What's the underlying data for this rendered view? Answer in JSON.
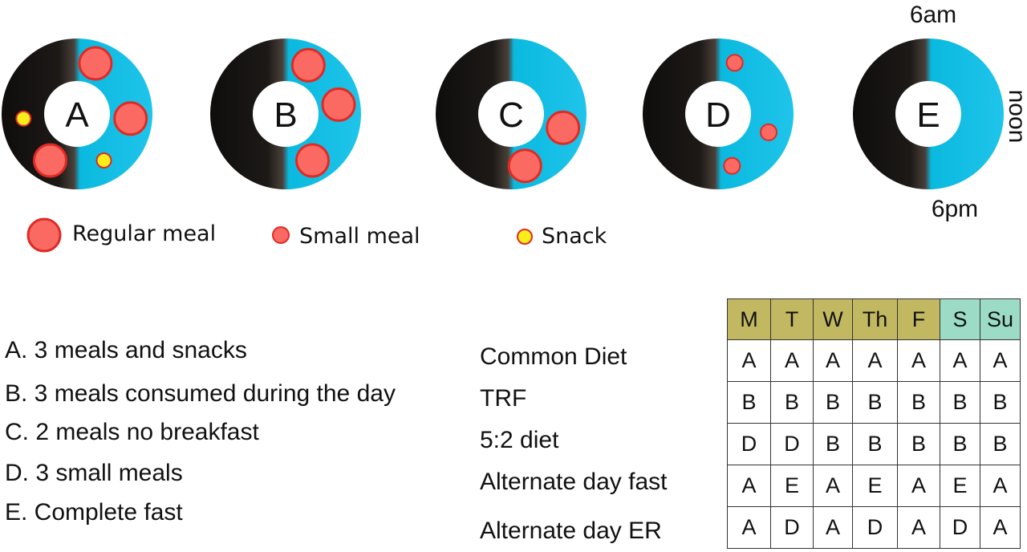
{
  "colors": {
    "night": "#1c1917",
    "day": "#0ab9df",
    "meal_fill": "#fa6a62",
    "meal_stroke": "#e02a24",
    "snack_fill": "#f8ee1a",
    "weekday_header": "#c3b862",
    "weekend_header": "#9cdcc6"
  },
  "time_labels": {
    "top": "6am",
    "right": "noon",
    "bottom": "6pm"
  },
  "patterns": [
    {
      "letter": "A",
      "meals": [
        {
          "type": "regular",
          "angle": 20
        },
        {
          "type": "regular",
          "angle": 95
        },
        {
          "type": "snack",
          "angle": 150
        },
        {
          "type": "regular",
          "angle": 210
        },
        {
          "type": "snack",
          "angle": 265
        }
      ]
    },
    {
      "letter": "B",
      "meals": [
        {
          "type": "regular",
          "angle": 25
        },
        {
          "type": "regular",
          "angle": 80
        },
        {
          "type": "regular",
          "angle": 150
        }
      ]
    },
    {
      "letter": "C",
      "meals": [
        {
          "type": "regular",
          "angle": 105
        },
        {
          "type": "regular",
          "angle": 165
        }
      ]
    },
    {
      "letter": "D",
      "meals": [
        {
          "type": "small",
          "angle": 18
        },
        {
          "type": "small",
          "angle": 110
        },
        {
          "type": "small",
          "angle": 165
        }
      ]
    },
    {
      "letter": "E",
      "meals": []
    }
  ],
  "legend": [
    {
      "type": "regular",
      "label": "Regular meal"
    },
    {
      "type": "small",
      "label": "Small meal"
    },
    {
      "type": "snack",
      "label": "Snack"
    }
  ],
  "descriptions": [
    "A. 3 meals and snacks",
    "B. 3 meals consumed during the day",
    "C. 2 meals no breakfast",
    "D.  3 small meals",
    "E.  Complete fast"
  ],
  "plans": [
    {
      "name": "Common Diet",
      "days": [
        "A",
        "A",
        "A",
        "A",
        "A",
        "A",
        "A"
      ]
    },
    {
      "name": "TRF",
      "days": [
        "B",
        "B",
        "B",
        "B",
        "B",
        "B",
        "B"
      ]
    },
    {
      "name": "5:2 diet",
      "days": [
        "D",
        "D",
        "B",
        "B",
        "B",
        "B",
        "B"
      ]
    },
    {
      "name": "Alternate day fast",
      "days": [
        "A",
        "E",
        "A",
        "E",
        "A",
        "E",
        "A"
      ]
    },
    {
      "name": "Alternate day ER",
      "days": [
        "A",
        "D",
        "A",
        "D",
        "A",
        "D",
        "A"
      ]
    }
  ],
  "days": [
    {
      "label": "M",
      "kind": "weekday"
    },
    {
      "label": "T",
      "kind": "weekday"
    },
    {
      "label": "W",
      "kind": "weekday"
    },
    {
      "label": "Th",
      "kind": "weekday"
    },
    {
      "label": "F",
      "kind": "weekday"
    },
    {
      "label": "S",
      "kind": "weekend"
    },
    {
      "label": "Su",
      "kind": "weekend"
    }
  ]
}
